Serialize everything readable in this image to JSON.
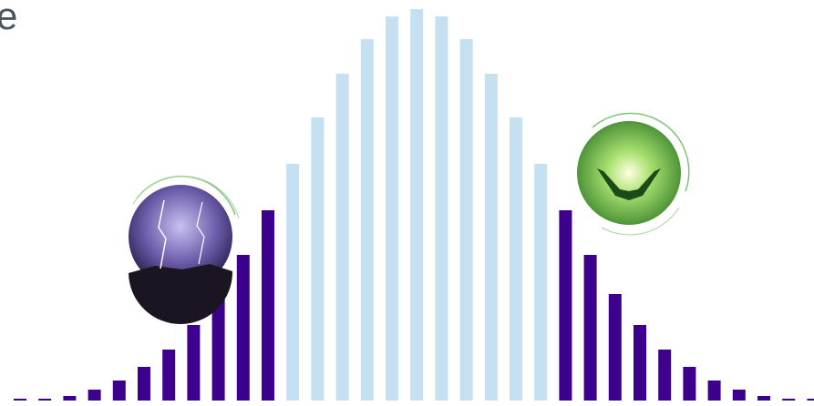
{
  "chart_data": {
    "type": "bar",
    "title": "e",
    "values": [
      2,
      2,
      5,
      12,
      22,
      37,
      56,
      83,
      117,
      160,
      209,
      260,
      311,
      359,
      397,
      422,
      430,
      422,
      397,
      359,
      311,
      260,
      209,
      160,
      117,
      83,
      56,
      37,
      22,
      12,
      5,
      2,
      2
    ],
    "colors": [
      "#3d008d",
      "#3d008d",
      "#3d008d",
      "#3d008d",
      "#3d008d",
      "#3d008d",
      "#3d008d",
      "#3d008d",
      "#3d008d",
      "#3d008d",
      "#3d008d",
      "#c5e0f0",
      "#c5e0f0",
      "#c5e0f0",
      "#c5e0f0",
      "#c5e0f0",
      "#c5e0f0",
      "#c5e0f0",
      "#c5e0f0",
      "#c5e0f0",
      "#c5e0f0",
      "#c5e0f0",
      "#3d008d",
      "#3d008d",
      "#3d008d",
      "#3d008d",
      "#3d008d",
      "#3d008d",
      "#3d008d",
      "#3d008d",
      "#3d008d",
      "#3d008d",
      "#3d008d"
    ],
    "ylim": [
      0,
      440
    ]
  }
}
